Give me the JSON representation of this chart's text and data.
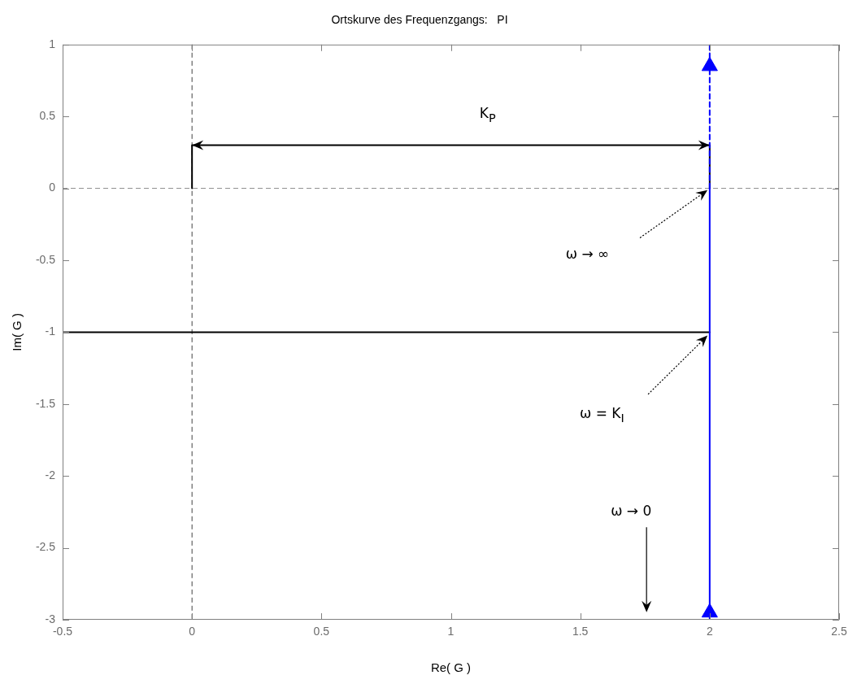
{
  "chart_data": {
    "type": "line",
    "title": "Ortskurve des Frequenzgangs:   PI",
    "xlabel": "Re( G )",
    "ylabel": "Im( G )",
    "xlim": [
      -0.5,
      2.5
    ],
    "xticks": [
      -0.5,
      0,
      0.5,
      1,
      1.5,
      2,
      2.5
    ],
    "ylim": [
      -3,
      1
    ],
    "yticks": [
      -3,
      -2.5,
      -2,
      -1.5,
      -1,
      -0.5,
      0,
      0.5,
      1
    ],
    "series": [
      {
        "type": "line",
        "color": "#0000ff",
        "x": [
          2,
          2
        ],
        "values": [
          -3,
          0
        ],
        "line_style": "solid"
      },
      {
        "type": "line",
        "color": "#0000ff",
        "x": [
          2,
          2
        ],
        "values": [
          0,
          1
        ],
        "line_style": "dashed"
      },
      {
        "type": "scatter",
        "color": "#0000ff",
        "x": [
          2,
          2
        ],
        "values": [
          0.85,
          -2.95
        ],
        "marker": "triangle"
      },
      {
        "color": "#000000",
        "x": [
          -0.5,
          2
        ],
        "values": [
          -1,
          -1
        ],
        "line_style": "solid"
      },
      {
        "color": "#000000",
        "x": [
          0,
          0,
          2,
          2
        ],
        "values": [
          0,
          0.3,
          0.3,
          0
        ],
        "line_style": "solid"
      }
    ],
    "ref_lines": [
      {
        "axis": "x",
        "value": 0,
        "color": "#404040",
        "line_style": "dashed"
      },
      {
        "axis": "y",
        "value": 0,
        "color": "#8a8a8a",
        "line_style": "dashed"
      }
    ],
    "annotations": [
      "K$_{P}$",
      "ω → ∞",
      "ω = K$_{I}$",
      "ω → 0"
    ]
  }
}
